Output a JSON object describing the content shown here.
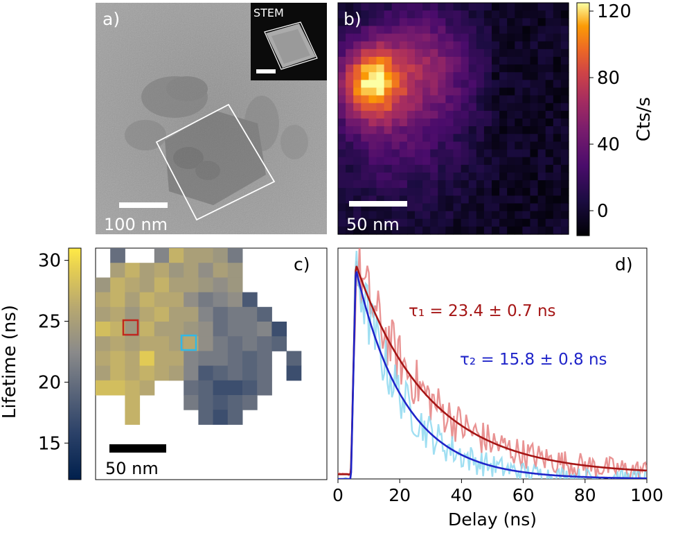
{
  "panels": {
    "a": {
      "label": "a)",
      "inset_label": "STEM",
      "scalebar_text": "100 nm"
    },
    "b": {
      "label": "b)",
      "scalebar_text": "50 nm",
      "colorbar": {
        "title": "Cts/s",
        "ticks": [
          "120",
          "80",
          "40",
          "0"
        ],
        "tick_values": [
          120,
          80,
          40,
          0
        ],
        "range": [
          -15,
          125
        ],
        "colormap": "inferno"
      }
    },
    "c": {
      "label": "c)",
      "scalebar_text": "50 nm",
      "colorbar": {
        "title": "Lifetime (ns)",
        "ticks": [
          "30",
          "25",
          "20",
          "15"
        ],
        "tick_values": [
          30,
          25,
          20,
          15
        ],
        "range": [
          12,
          31
        ],
        "colormap": "cividis-like"
      },
      "highlight_red_color": "#c0271d",
      "highlight_cyan_color": "#31b8e6"
    },
    "d": {
      "label": "d)",
      "annotation_1": "τ₁ = 23.4 ± 0.7 ns",
      "annotation_2": "τ₂ = 15.8 ± 0.8 ns"
    }
  },
  "chart_data": {
    "type": "line",
    "title": "",
    "xlabel": "Delay (ns)",
    "ylabel": "",
    "xlim": [
      0,
      100
    ],
    "ylim": [
      0,
      1.0
    ],
    "x_ticks": [
      "0",
      "20",
      "40",
      "60",
      "80",
      "100"
    ],
    "x_tick_values": [
      0,
      20,
      40,
      60,
      80,
      100
    ],
    "rise_time_ns": 5.8,
    "series": [
      {
        "name": "τ₁ fit",
        "color": "#a51515",
        "tau_ns": 23.4,
        "peak": 0.93,
        "baseline": 0.02
      },
      {
        "name": "τ₂ fit",
        "color": "#1f24c9",
        "tau_ns": 15.8,
        "peak": 0.91,
        "baseline": 0.0
      },
      {
        "name": "τ₁ data",
        "color": "#e58080",
        "tau_ns": 23.4,
        "peak": 0.93,
        "baseline": 0.02
      },
      {
        "name": "τ₂ data",
        "color": "#8fd9f0",
        "tau_ns": 15.8,
        "peak": 0.91,
        "baseline": 0.0
      }
    ]
  }
}
